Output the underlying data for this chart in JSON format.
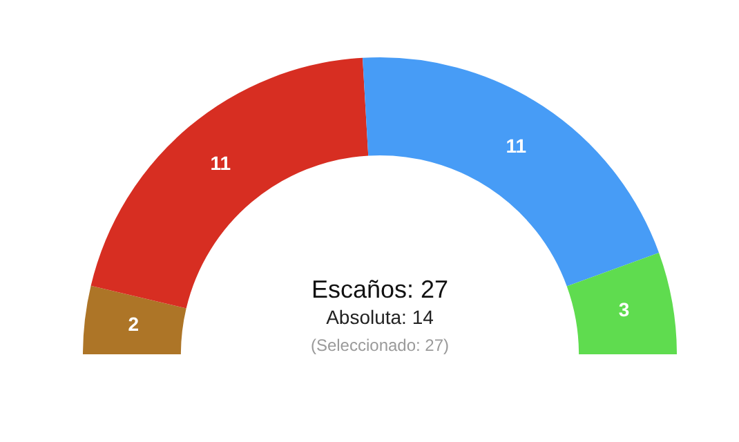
{
  "chart_data": {
    "type": "donut",
    "categories": [
      null,
      null,
      null,
      null
    ],
    "values": [
      2,
      11,
      11,
      3
    ],
    "colors": [
      "#ad7527",
      "#d72e22",
      "#479cf6",
      "#5fdc4f"
    ],
    "data_labels": true,
    "legend": false,
    "annotations": [
      "Escaños: 27",
      "Absoluta: 14",
      "(Seleccionado: 27)"
    ]
  }
}
